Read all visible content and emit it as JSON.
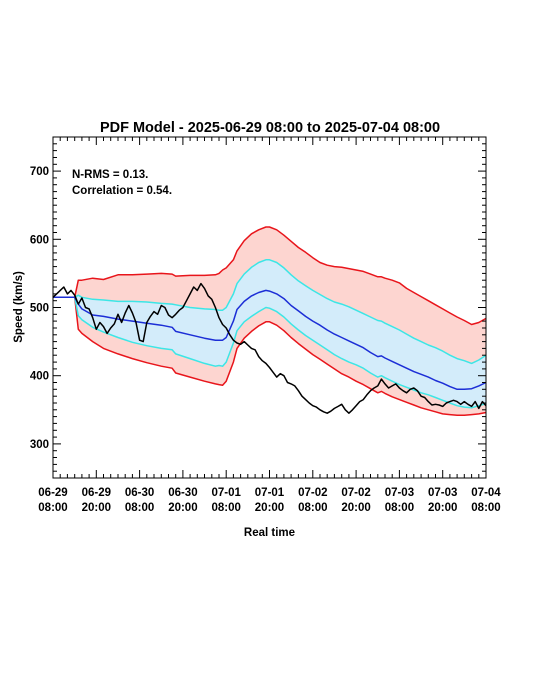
{
  "chart_data": {
    "type": "line",
    "title": "PDF Model - 2025-06-29 08:00 to 2025-07-04 08:00",
    "xlabel": "Real time",
    "ylabel": "Speed (km/s)",
    "ylim": [
      250,
      750
    ],
    "yticks": [
      300,
      400,
      500,
      600,
      700
    ],
    "xlim": [
      0,
      120
    ],
    "xticks": [
      {
        "x": 0,
        "line1": "06-29",
        "line2": "08:00"
      },
      {
        "x": 12,
        "line1": "06-29",
        "line2": "20:00"
      },
      {
        "x": 24,
        "line1": "06-30",
        "line2": "08:00"
      },
      {
        "x": 36,
        "line1": "06-30",
        "line2": "20:00"
      },
      {
        "x": 48,
        "line1": "07-01",
        "line2": "08:00"
      },
      {
        "x": 60,
        "line1": "07-01",
        "line2": "20:00"
      },
      {
        "x": 72,
        "line1": "07-02",
        "line2": "08:00"
      },
      {
        "x": 84,
        "line1": "07-02",
        "line2": "20:00"
      },
      {
        "x": 96,
        "line1": "07-03",
        "line2": "08:00"
      },
      {
        "x": 108,
        "line1": "07-03",
        "line2": "20:00"
      },
      {
        "x": 120,
        "line1": "07-04",
        "line2": "08:00"
      }
    ],
    "annotations": [
      "N-RMS = 0.13.",
      "Correlation = 0.54."
    ],
    "colors": {
      "outer_fill": "#fdd5d0",
      "inner_fill": "#d3ecfa",
      "outer_line": "#e8151b",
      "inner_line": "#3ce6e6",
      "median_line": "#1c2ed6",
      "observed_line": "#000000"
    },
    "model": {
      "x": [
        0,
        6,
        7,
        8,
        11,
        14,
        18,
        22,
        26,
        30,
        33,
        34,
        38,
        42,
        45,
        46,
        47,
        48,
        50,
        51,
        53,
        55,
        57,
        59,
        60,
        62,
        64,
        66,
        68,
        70,
        72,
        74,
        76,
        78,
        80,
        82,
        84,
        86,
        88,
        90,
        91,
        92,
        94,
        96,
        98,
        100,
        102,
        104,
        106,
        108,
        110,
        112,
        114,
        116,
        118,
        120
      ],
      "upper_red": [
        515,
        515,
        540,
        540,
        543,
        541,
        548,
        548,
        549,
        550,
        549,
        546,
        547,
        547,
        548,
        550,
        555,
        558,
        570,
        583,
        598,
        608,
        614,
        618,
        618,
        614,
        606,
        597,
        588,
        581,
        573,
        566,
        562,
        560,
        559,
        557,
        555,
        553,
        549,
        545,
        545,
        543,
        540,
        536,
        528,
        522,
        516,
        510,
        504,
        498,
        492,
        486,
        481,
        475,
        478,
        484
      ],
      "upper_cyan": [
        515,
        515,
        518,
        515,
        512,
        511,
        509,
        509,
        508,
        506,
        505,
        504,
        500,
        498,
        497,
        496,
        496,
        500,
        520,
        535,
        549,
        559,
        566,
        570,
        570,
        566,
        558,
        548,
        539,
        532,
        525,
        519,
        513,
        508,
        505,
        501,
        496,
        491,
        486,
        481,
        480,
        477,
        472,
        467,
        461,
        455,
        450,
        445,
        441,
        436,
        430,
        425,
        422,
        418,
        423,
        430
      ],
      "median": [
        515,
        515,
        505,
        498,
        489,
        487,
        483,
        480,
        477,
        474,
        471,
        465,
        460,
        455,
        452,
        452,
        452,
        456,
        480,
        497,
        509,
        517,
        522,
        525,
        524,
        520,
        513,
        503,
        495,
        487,
        480,
        474,
        467,
        461,
        456,
        451,
        446,
        441,
        434,
        428,
        429,
        426,
        421,
        416,
        411,
        406,
        402,
        398,
        393,
        389,
        384,
        380,
        380,
        381,
        385,
        390
      ],
      "lower_cyan": [
        515,
        515,
        488,
        482,
        471,
        464,
        456,
        449,
        444,
        440,
        438,
        432,
        425,
        418,
        414,
        415,
        414,
        420,
        448,
        466,
        479,
        487,
        494,
        500,
        499,
        494,
        486,
        476,
        467,
        459,
        452,
        445,
        438,
        431,
        425,
        420,
        416,
        411,
        404,
        398,
        400,
        397,
        392,
        387,
        383,
        379,
        375,
        372,
        368,
        364,
        360,
        356,
        354,
        353,
        356,
        359
      ],
      "lower_red": [
        515,
        515,
        468,
        462,
        450,
        440,
        432,
        425,
        419,
        414,
        411,
        404,
        398,
        392,
        388,
        387,
        386,
        392,
        420,
        440,
        455,
        465,
        473,
        479,
        479,
        474,
        466,
        456,
        447,
        439,
        431,
        424,
        417,
        410,
        403,
        398,
        392,
        387,
        381,
        375,
        377,
        374,
        369,
        365,
        361,
        357,
        353,
        350,
        347,
        344,
        343,
        342,
        342,
        343,
        344,
        346
      ]
    },
    "observed": {
      "x": [
        0,
        1,
        2,
        3,
        4,
        5,
        6,
        7,
        8,
        9,
        10,
        11,
        12,
        13,
        14,
        15,
        16,
        17,
        18,
        19,
        20,
        21,
        22,
        23,
        24,
        25,
        26,
        27,
        28,
        29,
        30,
        31,
        32,
        33,
        34,
        35,
        36,
        37,
        38,
        39,
        40,
        41,
        42,
        43,
        44,
        45,
        46,
        47,
        48,
        49,
        50,
        51,
        52,
        53,
        54,
        55,
        56,
        57,
        58,
        59,
        60,
        61,
        62,
        63,
        64,
        65,
        66,
        67,
        68,
        69,
        70,
        71,
        72,
        73,
        74,
        75,
        76,
        77,
        78,
        79,
        80,
        81,
        82,
        83,
        84,
        85,
        86,
        87,
        88,
        89,
        90,
        91,
        92,
        93,
        94,
        95,
        96,
        97,
        98,
        99,
        100,
        101,
        102,
        103,
        104,
        105,
        106,
        107,
        108,
        109,
        110,
        111,
        112,
        113,
        114,
        115,
        116,
        117,
        118,
        119,
        120
      ],
      "y": [
        515,
        520,
        525,
        530,
        520,
        525,
        518,
        505,
        514,
        500,
        498,
        485,
        468,
        478,
        472,
        462,
        470,
        476,
        490,
        478,
        492,
        503,
        492,
        478,
        452,
        450,
        478,
        487,
        494,
        490,
        503,
        500,
        489,
        485,
        490,
        496,
        500,
        510,
        520,
        530,
        525,
        535,
        528,
        517,
        512,
        500,
        485,
        475,
        470,
        460,
        452,
        448,
        446,
        450,
        445,
        440,
        438,
        428,
        422,
        418,
        412,
        405,
        398,
        403,
        400,
        390,
        388,
        385,
        378,
        370,
        365,
        360,
        356,
        354,
        350,
        347,
        345,
        348,
        352,
        355,
        358,
        350,
        345,
        350,
        356,
        362,
        365,
        372,
        378,
        382,
        385,
        395,
        388,
        382,
        385,
        388,
        382,
        378,
        375,
        380,
        382,
        378,
        370,
        368,
        362,
        357,
        358,
        357,
        355,
        360,
        362,
        364,
        362,
        358,
        362,
        358,
        355,
        362,
        352,
        362,
        356
      ]
    }
  }
}
